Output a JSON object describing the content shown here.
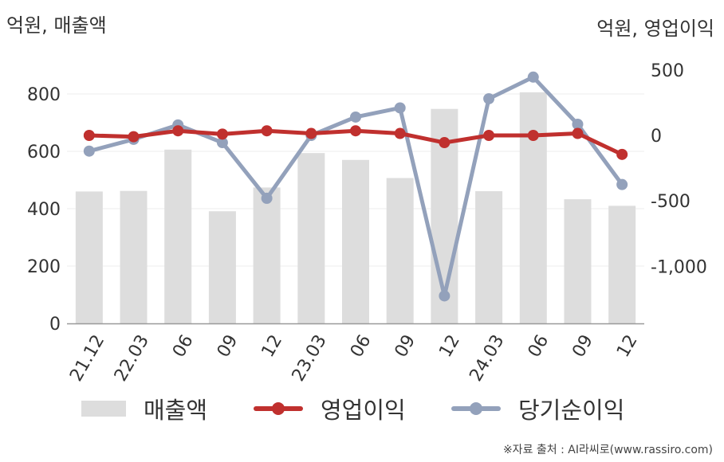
{
  "units": {
    "left": "억원, 매출액",
    "right": "억원, 영업이익"
  },
  "source": "※자료 출처 : AI라씨로(www.rassiro.com)",
  "colors": {
    "bars": "#dddddd",
    "operating": "#c0302e",
    "net": "#93a1bb",
    "axis": "#999999",
    "grid": "#eeeeee"
  },
  "chart_data": {
    "type": "bar",
    "categories": [
      "21.12",
      "22.03",
      "06",
      "09",
      "12",
      "23.03",
      "06",
      "09",
      "12",
      "24.03",
      "06",
      "09",
      "12"
    ],
    "left_axis": {
      "ticks": [
        "0",
        "200",
        "400",
        "600",
        "800"
      ],
      "ylim": [
        0,
        900
      ]
    },
    "right_axis": {
      "ticks": [
        "-1,000",
        "-500",
        "0",
        "500"
      ],
      "ylim": [
        -1435,
        535
      ]
    },
    "series": [
      {
        "name": "매출액",
        "type": "bar",
        "axis": "left",
        "values": [
          460,
          462,
          606,
          391,
          474,
          594,
          570,
          507,
          748,
          461,
          806,
          433,
          410
        ]
      },
      {
        "name": "영업이익",
        "type": "line",
        "axis": "right",
        "values": [
          0,
          -10,
          35,
          10,
          35,
          15,
          35,
          15,
          -55,
          0,
          0,
          15,
          -145
        ]
      },
      {
        "name": "당기순이익",
        "type": "line",
        "axis": "right",
        "values": [
          -120,
          -30,
          80,
          -55,
          -480,
          0,
          140,
          210,
          -1225,
          280,
          445,
          85,
          -375
        ]
      }
    ],
    "legend": "bottom",
    "grid": true
  }
}
